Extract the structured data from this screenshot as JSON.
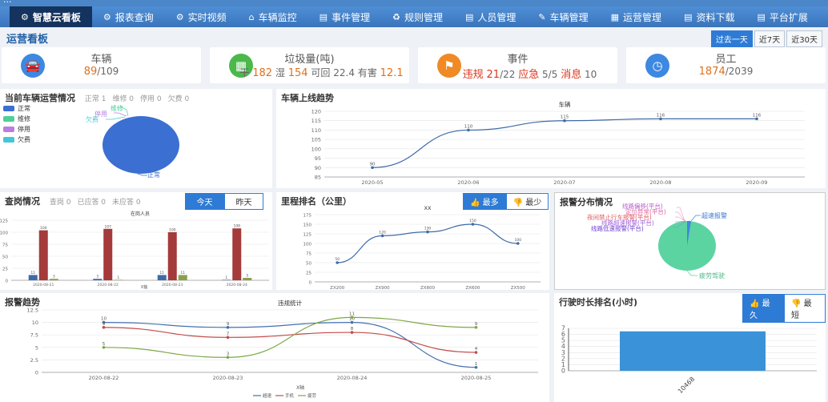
{
  "app_title": "...",
  "nav": [
    {
      "label": "智慧云看板",
      "icon": "cogs-icon"
    },
    {
      "label": "报表查询",
      "icon": "cogs-icon"
    },
    {
      "label": "实时视频",
      "icon": "cogs-icon"
    },
    {
      "label": "车辆监控",
      "icon": "home-icon"
    },
    {
      "label": "事件管理",
      "icon": "list-icon"
    },
    {
      "label": "规则管理",
      "icon": "recycle-icon"
    },
    {
      "label": "人员管理",
      "icon": "list-icon"
    },
    {
      "label": "车辆管理",
      "icon": "wrench-icon"
    },
    {
      "label": "运营管理",
      "icon": "calendar-icon"
    },
    {
      "label": "资料下载",
      "icon": "list-icon"
    },
    {
      "label": "平台扩展",
      "icon": "list-icon"
    }
  ],
  "page_title": "运营看板",
  "range_buttons": [
    "过去一天",
    "近7天",
    "近30天"
  ],
  "cards": {
    "vehicles": {
      "title": "车辆",
      "value": "89",
      "total": "/109"
    },
    "garbage": {
      "title": "垃圾量(吨)",
      "dry_label": "干",
      "dry": "182",
      "wet_label": "湿",
      "wet": "154",
      "recyclable_label": "可回",
      "recyclable": "22.4",
      "hazardous_label": "有害",
      "hazardous": "12.1"
    },
    "events": {
      "title": "事件",
      "violation_label": "违规",
      "violation": "21",
      "violation_total": "/22",
      "emergency_label": "应急",
      "emergency": "5/5",
      "fire_label": "消息",
      "fire": "10"
    },
    "staff": {
      "title": "员工",
      "value": "1874",
      "total": "/2039"
    }
  },
  "panel_vehicle_status": {
    "title": "当前车辆运营情况",
    "sub": [
      "正常 1",
      "维修 0",
      "停用 0",
      "欠费 0"
    ],
    "legend": [
      {
        "label": "正常",
        "color": "#3b6fd1"
      },
      {
        "label": "维修",
        "color": "#4fcf9a"
      },
      {
        "label": "停用",
        "color": "#b87fe0"
      },
      {
        "label": "欠费",
        "color": "#45c6d8"
      }
    ],
    "pie_labels": [
      "维修",
      "停用",
      "欠费",
      "正常"
    ]
  },
  "panel_online_trend": {
    "title": "车辆上线趋势",
    "series_title": "车辆"
  },
  "panel_checkin": {
    "title": "查岗情况",
    "sub": [
      "查岗 0",
      "已应答 0",
      "未应答 0"
    ],
    "btn_today": "今天",
    "btn_yesterday": "昨天",
    "series_title": "在岗人员",
    "x_axis_title": "X轴"
  },
  "panel_mileage": {
    "title": "里程排名（公里）",
    "btn_most": "最多",
    "btn_least": "最少",
    "series_title": "XX"
  },
  "panel_alarm_dist": {
    "title": "报警分布情况",
    "labels": [
      "超速报警",
      "疲劳驾驶",
      "线路偏移(平台)",
      "定位异常(平台)",
      "夜间禁止行车报警(平台)",
      "线路超速报警(平台)",
      "线路低速报警(平台)"
    ]
  },
  "panel_alarm_trend": {
    "title": "报警趋势",
    "series_title": "违规统计",
    "x_axis_title": "X轴"
  },
  "panel_drive_time": {
    "title": "行驶时长排名(小时)",
    "btn_most": "最久",
    "btn_least": "最短"
  },
  "chart_data": [
    {
      "type": "line",
      "title": "车辆",
      "x": [
        "2020-05",
        "2020-06",
        "2020-07",
        "2020-08",
        "2020-09"
      ],
      "values": [
        90,
        110,
        115,
        116,
        116
      ],
      "ylim": [
        85,
        120
      ],
      "yticks": [
        85,
        90,
        95,
        100,
        105,
        110,
        115,
        120
      ]
    },
    {
      "type": "bar",
      "title": "在岗人员",
      "categories": [
        "2020-08-21",
        "2020-08-22",
        "2020-08-23",
        "2020-08-24"
      ],
      "series": [
        {
          "values": [
            11,
            3,
            11,
            1
          ],
          "color": "#3e6ba8"
        },
        {
          "values": [
            104,
            107,
            100,
            108
          ],
          "color": "#a53a3a"
        },
        {
          "values": [
            3,
            1,
            11,
            5
          ],
          "color": "#8aa14a"
        }
      ],
      "ylim": [
        0,
        125
      ],
      "yticks": [
        0,
        25,
        50,
        75,
        100,
        125
      ]
    },
    {
      "type": "line",
      "title": "XX",
      "x": [
        "ZX200",
        "ZX900",
        "ZX800",
        "ZX600",
        "ZX500"
      ],
      "values": [
        50,
        120,
        130,
        150,
        100
      ],
      "ylim": [
        0,
        175
      ],
      "yticks": [
        0,
        25,
        50,
        75,
        100,
        125,
        150,
        175
      ]
    },
    {
      "type": "pie",
      "categories": [
        "疲劳驾驶",
        "超速报警"
      ],
      "values": [
        99,
        1
      ]
    },
    {
      "type": "line",
      "title": "违规统计",
      "x": [
        "2020-08-22",
        "2020-08-23",
        "2020-08-24",
        "2020-08-25"
      ],
      "series": [
        {
          "name": "超速",
          "values": [
            10,
            9,
            10,
            1
          ],
          "color": "#4470b0"
        },
        {
          "name": "手机",
          "values": [
            9,
            7,
            8,
            4
          ],
          "color": "#c44b4b"
        },
        {
          "name": "疲劳",
          "values": [
            5,
            3,
            11,
            9
          ],
          "color": "#7ea847"
        }
      ],
      "ylim": [
        0,
        12.5
      ],
      "yticks": [
        0,
        2.5,
        5,
        7.5,
        10,
        12.5
      ]
    },
    {
      "type": "bar",
      "categories": [
        "10468"
      ],
      "values": [
        6.5
      ],
      "ylim": [
        0,
        7
      ],
      "yticks": [
        0,
        1,
        2,
        3,
        4,
        5,
        6,
        7
      ]
    }
  ]
}
